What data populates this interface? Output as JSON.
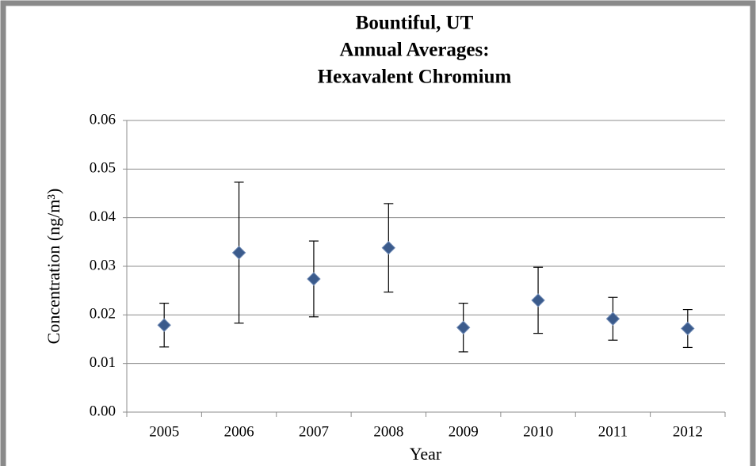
{
  "chart_data": {
    "type": "scatter",
    "title": [
      "Bountiful, UT",
      "Annual Averages:",
      "Hexavalent Chromium"
    ],
    "x_label": "Year",
    "y_label": "Concentration (ng/m³)",
    "categories": [
      "2005",
      "2006",
      "2007",
      "2008",
      "2009",
      "2010",
      "2011",
      "2012"
    ],
    "values": [
      0.0179,
      0.0328,
      0.0274,
      0.0338,
      0.0174,
      0.023,
      0.0192,
      0.0172
    ],
    "errors": [
      0.0045,
      0.0145,
      0.0078,
      0.0091,
      0.005,
      0.0068,
      0.0044,
      0.0039
    ],
    "color": "#3b5b8c",
    "ylim": [
      0,
      0.06
    ],
    "yticks": [
      {
        "value": 0,
        "label": "0.00"
      },
      0.01,
      0.02,
      0.03,
      0.04,
      0.05,
      0.06
    ],
    "grid": true
  }
}
